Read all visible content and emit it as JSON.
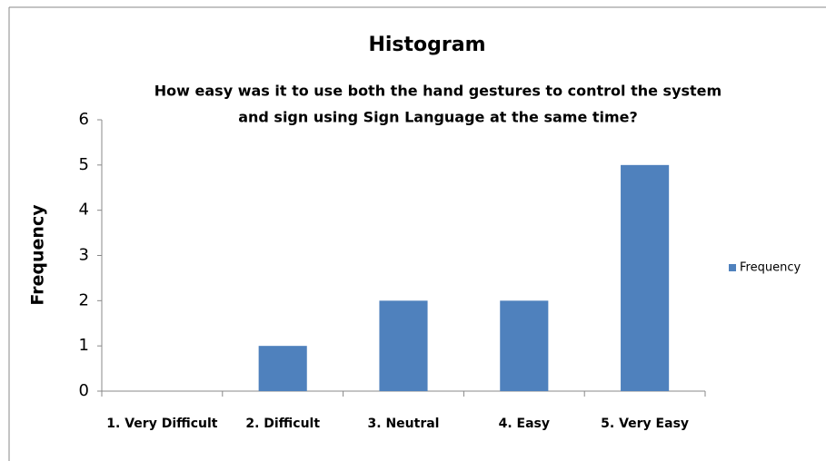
{
  "chart_data": {
    "type": "bar",
    "title": "Histogram",
    "subtitle": [
      "How easy was it to use both the hand gestures to control the system",
      "and sign using Sign Language at the same time?"
    ],
    "y_label": "Frequency",
    "categories": [
      "1. Very Difficult",
      "2. Difficult",
      "3. Neutral",
      "4. Easy",
      "5. Very Easy"
    ],
    "series": [
      {
        "name": "Frequency",
        "color": "#4f81bd",
        "values": [
          0,
          1,
          2,
          2,
          5
        ]
      }
    ],
    "ylim": [
      0,
      6
    ],
    "yticks": [
      0,
      1,
      2,
      3,
      4,
      5,
      6
    ],
    "grid": false,
    "legend": "right"
  }
}
